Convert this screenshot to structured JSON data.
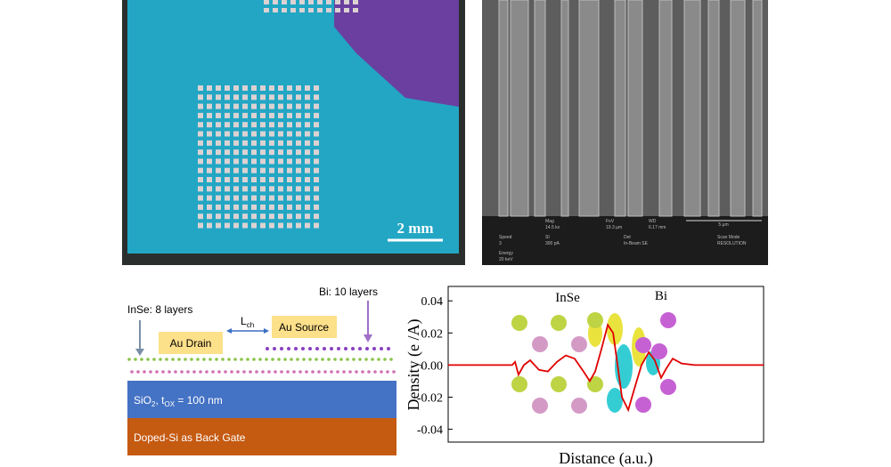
{
  "photo": {
    "scale_bar": "2 mm"
  },
  "sem": {
    "info": [
      [
        "Mag",
        "14.5 kx"
      ],
      [
        "FoV",
        "19.3 µm"
      ],
      [
        "WD",
        "6.17 mm"
      ],
      [
        "Speed",
        "3"
      ],
      [
        "SI",
        "300 pA"
      ],
      [
        "Det",
        "In-Beam SE"
      ],
      [
        "Scan Mode",
        "RESOLUTION"
      ],
      [
        "Energy",
        "20 keV"
      ]
    ],
    "scale_bar": "5 µm"
  },
  "schematic": {
    "insE_label": "InSe: 8 layers",
    "bi_label": "Bi: 10 layers",
    "lch": {
      "main": "L",
      "sub": "ch"
    },
    "drain": "Au Drain",
    "source": "Au Source",
    "oxide": [
      "SiO",
      "2",
      ", t",
      "OX",
      " = 100 nm"
    ],
    "gate": "Doped-Si as Back Gate"
  },
  "chart_data": {
    "type": "line",
    "ylabel": "Density (e /A)",
    "xlabel": "Distance (a.u.)",
    "annotations": [
      "InSe",
      "Bi"
    ],
    "x": [
      0,
      20.3,
      21.2,
      22.3,
      24.0,
      26.0,
      28.8,
      31.6,
      34.5,
      37.3,
      40.1,
      42.9,
      44.9,
      46.6,
      48.6,
      50.6,
      52.3,
      53.7,
      55.1,
      57.1,
      59.0,
      61.3,
      63.6,
      65.5,
      67.5,
      69.2,
      71.2,
      74.0,
      78.2,
      100
    ],
    "values": [
      0,
      0,
      0.002,
      -0.006,
      0,
      0.003,
      -0.003,
      -0.004,
      0.002,
      0.006,
      0.004,
      -0.004,
      -0.01,
      -0.004,
      0.01,
      0.025,
      0.02,
      0,
      -0.02,
      -0.028,
      -0.015,
      0,
      0.008,
      0.003,
      -0.008,
      -0.002,
      0.004,
      0.001,
      0,
      0
    ],
    "color": "#e00000",
    "xlim": [
      0,
      100
    ],
    "ylim": [
      -0.048,
      0.049
    ],
    "yticks": [
      0.04,
      0.02,
      {
        "value": 0,
        "label": "0.00"
      },
      -0.02,
      -0.04
    ]
  }
}
